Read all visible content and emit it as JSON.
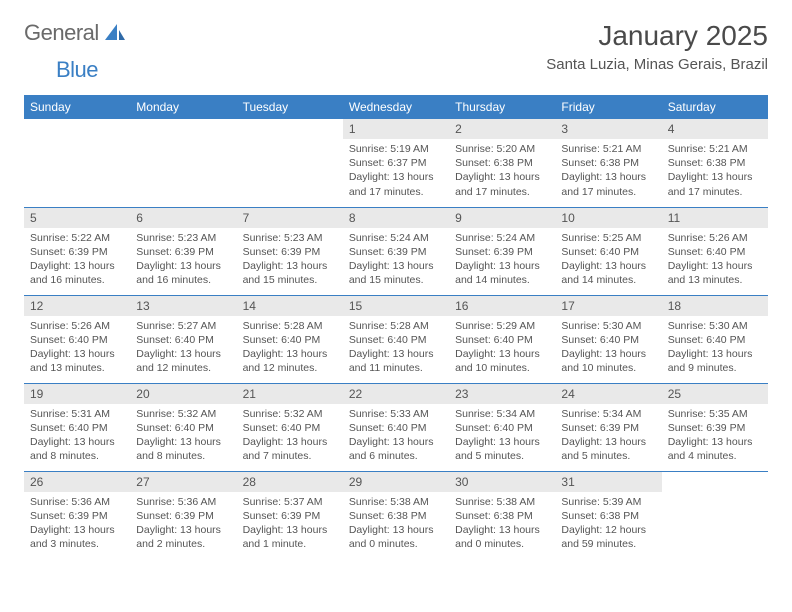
{
  "brand": {
    "part1": "General",
    "part2": "Blue"
  },
  "title": "January 2025",
  "location": "Santa Luzia, Minas Gerais, Brazil",
  "colors": {
    "header_bg": "#3a7fc4",
    "header_text": "#ffffff",
    "daynum_bg": "#e9e9e9",
    "text": "#555555",
    "rule": "#3a7fc4"
  },
  "weekdays": [
    "Sunday",
    "Monday",
    "Tuesday",
    "Wednesday",
    "Thursday",
    "Friday",
    "Saturday"
  ],
  "weeks": [
    [
      {
        "n": "",
        "sr": "",
        "ss": "",
        "dl": ""
      },
      {
        "n": "",
        "sr": "",
        "ss": "",
        "dl": ""
      },
      {
        "n": "",
        "sr": "",
        "ss": "",
        "dl": ""
      },
      {
        "n": "1",
        "sr": "5:19 AM",
        "ss": "6:37 PM",
        "dl": "13 hours and 17 minutes."
      },
      {
        "n": "2",
        "sr": "5:20 AM",
        "ss": "6:38 PM",
        "dl": "13 hours and 17 minutes."
      },
      {
        "n": "3",
        "sr": "5:21 AM",
        "ss": "6:38 PM",
        "dl": "13 hours and 17 minutes."
      },
      {
        "n": "4",
        "sr": "5:21 AM",
        "ss": "6:38 PM",
        "dl": "13 hours and 17 minutes."
      }
    ],
    [
      {
        "n": "5",
        "sr": "5:22 AM",
        "ss": "6:39 PM",
        "dl": "13 hours and 16 minutes."
      },
      {
        "n": "6",
        "sr": "5:23 AM",
        "ss": "6:39 PM",
        "dl": "13 hours and 16 minutes."
      },
      {
        "n": "7",
        "sr": "5:23 AM",
        "ss": "6:39 PM",
        "dl": "13 hours and 15 minutes."
      },
      {
        "n": "8",
        "sr": "5:24 AM",
        "ss": "6:39 PM",
        "dl": "13 hours and 15 minutes."
      },
      {
        "n": "9",
        "sr": "5:24 AM",
        "ss": "6:39 PM",
        "dl": "13 hours and 14 minutes."
      },
      {
        "n": "10",
        "sr": "5:25 AM",
        "ss": "6:40 PM",
        "dl": "13 hours and 14 minutes."
      },
      {
        "n": "11",
        "sr": "5:26 AM",
        "ss": "6:40 PM",
        "dl": "13 hours and 13 minutes."
      }
    ],
    [
      {
        "n": "12",
        "sr": "5:26 AM",
        "ss": "6:40 PM",
        "dl": "13 hours and 13 minutes."
      },
      {
        "n": "13",
        "sr": "5:27 AM",
        "ss": "6:40 PM",
        "dl": "13 hours and 12 minutes."
      },
      {
        "n": "14",
        "sr": "5:28 AM",
        "ss": "6:40 PM",
        "dl": "13 hours and 12 minutes."
      },
      {
        "n": "15",
        "sr": "5:28 AM",
        "ss": "6:40 PM",
        "dl": "13 hours and 11 minutes."
      },
      {
        "n": "16",
        "sr": "5:29 AM",
        "ss": "6:40 PM",
        "dl": "13 hours and 10 minutes."
      },
      {
        "n": "17",
        "sr": "5:30 AM",
        "ss": "6:40 PM",
        "dl": "13 hours and 10 minutes."
      },
      {
        "n": "18",
        "sr": "5:30 AM",
        "ss": "6:40 PM",
        "dl": "13 hours and 9 minutes."
      }
    ],
    [
      {
        "n": "19",
        "sr": "5:31 AM",
        "ss": "6:40 PM",
        "dl": "13 hours and 8 minutes."
      },
      {
        "n": "20",
        "sr": "5:32 AM",
        "ss": "6:40 PM",
        "dl": "13 hours and 8 minutes."
      },
      {
        "n": "21",
        "sr": "5:32 AM",
        "ss": "6:40 PM",
        "dl": "13 hours and 7 minutes."
      },
      {
        "n": "22",
        "sr": "5:33 AM",
        "ss": "6:40 PM",
        "dl": "13 hours and 6 minutes."
      },
      {
        "n": "23",
        "sr": "5:34 AM",
        "ss": "6:40 PM",
        "dl": "13 hours and 5 minutes."
      },
      {
        "n": "24",
        "sr": "5:34 AM",
        "ss": "6:39 PM",
        "dl": "13 hours and 5 minutes."
      },
      {
        "n": "25",
        "sr": "5:35 AM",
        "ss": "6:39 PM",
        "dl": "13 hours and 4 minutes."
      }
    ],
    [
      {
        "n": "26",
        "sr": "5:36 AM",
        "ss": "6:39 PM",
        "dl": "13 hours and 3 minutes."
      },
      {
        "n": "27",
        "sr": "5:36 AM",
        "ss": "6:39 PM",
        "dl": "13 hours and 2 minutes."
      },
      {
        "n": "28",
        "sr": "5:37 AM",
        "ss": "6:39 PM",
        "dl": "13 hours and 1 minute."
      },
      {
        "n": "29",
        "sr": "5:38 AM",
        "ss": "6:38 PM",
        "dl": "13 hours and 0 minutes."
      },
      {
        "n": "30",
        "sr": "5:38 AM",
        "ss": "6:38 PM",
        "dl": "13 hours and 0 minutes."
      },
      {
        "n": "31",
        "sr": "5:39 AM",
        "ss": "6:38 PM",
        "dl": "12 hours and 59 minutes."
      },
      {
        "n": "",
        "sr": "",
        "ss": "",
        "dl": ""
      }
    ]
  ],
  "labels": {
    "sunrise": "Sunrise: ",
    "sunset": "Sunset: ",
    "daylight": "Daylight: "
  }
}
